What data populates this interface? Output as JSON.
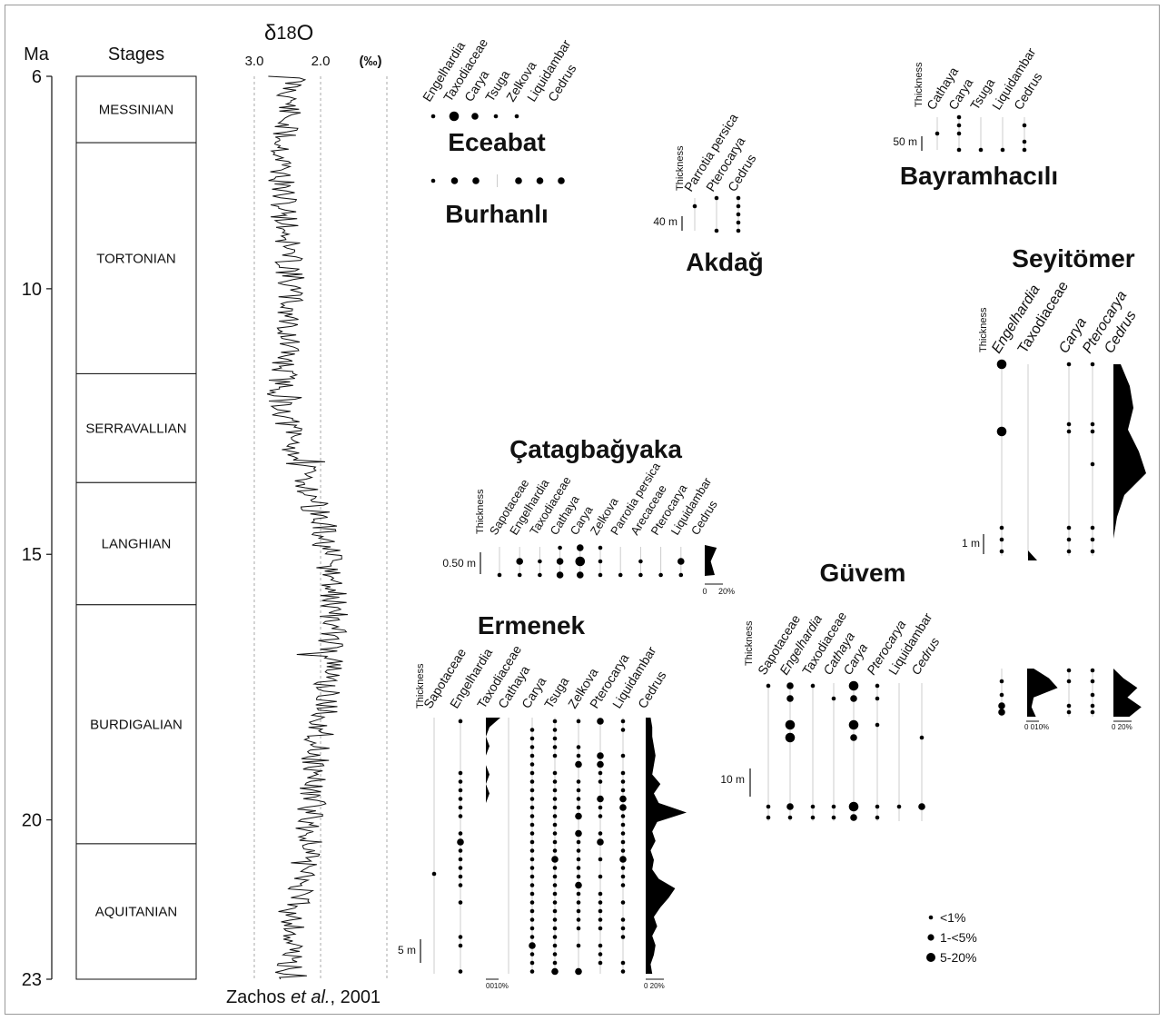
{
  "chart_data": {
    "type": "line",
    "time_axis": {
      "label": "Ma",
      "ticks": [
        6,
        10,
        15,
        20,
        23
      ],
      "range": [
        6,
        23
      ]
    },
    "stages": {
      "header": "Stages",
      "items": [
        {
          "name": "MESSINIAN",
          "from": 6.0,
          "to": 7.25
        },
        {
          "name": "TORTONIAN",
          "from": 7.25,
          "to": 11.6
        },
        {
          "name": "SERRAVALLIAN",
          "from": 11.6,
          "to": 13.65
        },
        {
          "name": "LANGHIAN",
          "from": 13.65,
          "to": 15.95
        },
        {
          "name": "BURDIGALIAN",
          "from": 15.95,
          "to": 20.45
        },
        {
          "name": "AQUITANIAN",
          "from": 20.45,
          "to": 23.0
        }
      ]
    },
    "isotope_curve": {
      "title_symbol": "δ",
      "title_num": "18",
      "title_elem": "O",
      "units": "(‰)",
      "x_ticks": [
        "3.0",
        "2.0"
      ],
      "x_range_reversed": [
        3.5,
        1.0
      ],
      "source_prefix": "Zachos ",
      "source_italic": "et al.",
      "source_suffix": ", 2001",
      "trend": [
        {
          "age": 6.0,
          "d18O": 2.4
        },
        {
          "age": 7.0,
          "d18O": 2.55
        },
        {
          "age": 8.0,
          "d18O": 2.6
        },
        {
          "age": 9.0,
          "d18O": 2.5
        },
        {
          "age": 10.0,
          "d18O": 2.45
        },
        {
          "age": 11.0,
          "d18O": 2.5
        },
        {
          "age": 12.0,
          "d18O": 2.6
        },
        {
          "age": 13.0,
          "d18O": 2.4
        },
        {
          "age": 14.0,
          "d18O": 2.1
        },
        {
          "age": 15.0,
          "d18O": 1.9
        },
        {
          "age": 16.0,
          "d18O": 1.8
        },
        {
          "age": 17.0,
          "d18O": 1.85
        },
        {
          "age": 18.0,
          "d18O": 1.95
        },
        {
          "age": 19.0,
          "d18O": 2.1
        },
        {
          "age": 20.0,
          "d18O": 2.15
        },
        {
          "age": 21.0,
          "d18O": 2.25
        },
        {
          "age": 22.0,
          "d18O": 2.4
        },
        {
          "age": 23.0,
          "d18O": 2.5
        }
      ],
      "amplitude": 0.22
    },
    "legend": {
      "items": [
        {
          "label": "<1%",
          "size": "small"
        },
        {
          "label": "1-<5%",
          "size": "medium"
        },
        {
          "label": "5-20%",
          "size": "large"
        }
      ]
    },
    "sites": [
      {
        "name": "Eceabat",
        "thickness_label": "",
        "scale_label": "",
        "taxa": [
          "Engelhardia",
          "Taxodiaceae",
          "Carya",
          "Tsuga",
          "Zelkova",
          "Liquidambar",
          "Cedrus"
        ],
        "rows": [
          [
            1,
            3,
            2,
            1,
            1,
            0,
            0
          ]
        ]
      },
      {
        "name": "Burhanlı",
        "thickness_label": "",
        "scale_label": "",
        "taxa": [
          "Engelhardia",
          "Taxodiaceae",
          "Carya",
          "Tsuga",
          "Zelkova",
          "Liquidambar",
          "Cedrus"
        ],
        "rows": [
          [
            1,
            2,
            2,
            0,
            2,
            2,
            2
          ]
        ]
      },
      {
        "name": "Akdağ",
        "thickness_label": "Thickness",
        "scale_label": "40 m",
        "taxa": [
          "Parrotia persica",
          "Pterocarya",
          "Cedrus"
        ],
        "rows": [
          [
            0,
            1,
            1
          ],
          [
            1,
            0,
            1
          ],
          [
            0,
            0,
            1
          ],
          [
            0,
            0,
            1
          ],
          [
            0,
            1,
            1
          ]
        ]
      },
      {
        "name": "Bayramhacılı",
        "thickness_label": "Thickness",
        "scale_label": "50 m",
        "taxa": [
          "Cathaya",
          "Carya",
          "Tsuga",
          "Liquidambar",
          "Cedrus"
        ],
        "rows": [
          [
            0,
            1,
            0,
            0,
            0
          ],
          [
            0,
            1,
            0,
            0,
            1
          ],
          [
            1,
            1,
            0,
            0,
            0
          ],
          [
            0,
            0,
            0,
            0,
            1
          ],
          [
            0,
            1,
            1,
            1,
            1
          ]
        ]
      },
      {
        "name": "Çatagbağyaka",
        "thickness_label": "Thickness",
        "scale_label": "0.50 m",
        "taxa": [
          "Sapotaceae",
          "Engelhardia",
          "Taxodiaceae",
          "Cathaya",
          "Carya",
          "Zelkova",
          "Parrotia persica",
          "Arecaceae",
          "Pterocarya",
          "Liquidambar",
          "Cedrus"
        ],
        "rows": [
          [
            0,
            0,
            0,
            1,
            2,
            1,
            0,
            0,
            0,
            0,
            0
          ],
          [
            0,
            2,
            1,
            2,
            3,
            1,
            0,
            1,
            0,
            2,
            0
          ],
          [
            1,
            1,
            1,
            2,
            2,
            1,
            1,
            1,
            1,
            1,
            0
          ]
        ],
        "cedrus_pct": [
          12,
          6,
          10
        ],
        "pct_axis": [
          "0",
          "20%"
        ]
      },
      {
        "name": "Ermenek",
        "thickness_label": "Thickness",
        "scale_label": "5 m",
        "taxa": [
          "Sapotaceae",
          "Engelhardia",
          "Taxodiaceae",
          "Cathaya",
          "Carya",
          "Tsuga",
          "Zelkova",
          "Pterocarya",
          "Liquidambar",
          "Cedrus"
        ],
        "presence_pct": [
          2,
          70,
          6,
          8,
          95,
          90,
          75,
          80,
          80
        ],
        "cedrus_pct": [
          3,
          4,
          4,
          5,
          6,
          5,
          4,
          9,
          5,
          8,
          25,
          7,
          4,
          6,
          3,
          5,
          4,
          8,
          18,
          14,
          9,
          5,
          7,
          4,
          6,
          5,
          3,
          4
        ],
        "taxodiaceae_pct": [
          4,
          1,
          0,
          1,
          0,
          0,
          1,
          0,
          1,
          0,
          0,
          0,
          0,
          0,
          0,
          0,
          0,
          0,
          0,
          0,
          0,
          0,
          0,
          0,
          0,
          0,
          0,
          0
        ],
        "pct_axis_a": [
          "0",
          "10%"
        ],
        "pct_axis_b": [
          "0",
          "20%"
        ]
      },
      {
        "name": "Güvem",
        "thickness_label": "Thickness",
        "scale_label": "10 m",
        "taxa": [
          "Sapotaceae",
          "Engelhardia",
          "Taxodiaceae",
          "Cathaya",
          "Carya",
          "Pterocarya",
          "Liquidambar",
          "Cedrus"
        ],
        "rows": [
          [
            1,
            2,
            1,
            0,
            3,
            1,
            0,
            0
          ],
          [
            0,
            2,
            0,
            1,
            2,
            1,
            0,
            0
          ],
          [
            0,
            3,
            0,
            0,
            3,
            1,
            0,
            0
          ],
          [
            0,
            3,
            0,
            0,
            2,
            0,
            0,
            0
          ],
          [
            0,
            0,
            0,
            0,
            0,
            0,
            0,
            1
          ],
          [
            1,
            2,
            1,
            1,
            3,
            1,
            1,
            2
          ],
          [
            1,
            1,
            1,
            1,
            2,
            1,
            0,
            0
          ]
        ]
      },
      {
        "name": "Seyitömer",
        "thickness_label": "Thickness",
        "scale_label": "1 m",
        "taxa": [
          "Engelhardia",
          "Taxodiaceae",
          "Carya",
          "Pterocarya",
          "Cedrus"
        ],
        "upper_rows": [
          [
            3,
            0,
            1,
            1
          ],
          [
            0,
            0,
            1,
            1
          ],
          [
            3,
            0,
            1,
            1
          ],
          [
            0,
            0,
            0,
            1
          ],
          [
            1,
            0,
            1,
            1
          ],
          [
            1,
            0,
            1,
            1
          ],
          [
            1,
            0,
            1,
            1
          ]
        ],
        "lower_rows": [
          [
            1,
            0,
            1,
            1
          ],
          [
            1,
            0,
            0,
            1
          ],
          [
            2,
            0,
            1,
            1
          ],
          [
            2,
            0,
            1,
            1
          ]
        ],
        "cedrus_upper_pct": [
          4,
          9,
          11,
          8,
          14,
          18,
          6,
          2,
          0,
          0
        ],
        "cedrus_lower_pct": [
          0,
          5,
          12,
          7,
          14,
          8
        ],
        "tax_lower_pct": [
          3,
          10,
          14,
          3,
          2,
          4
        ],
        "pct_axis_a": [
          "0",
          "10%"
        ],
        "pct_axis_b": [
          "0",
          "20%"
        ]
      }
    ]
  }
}
